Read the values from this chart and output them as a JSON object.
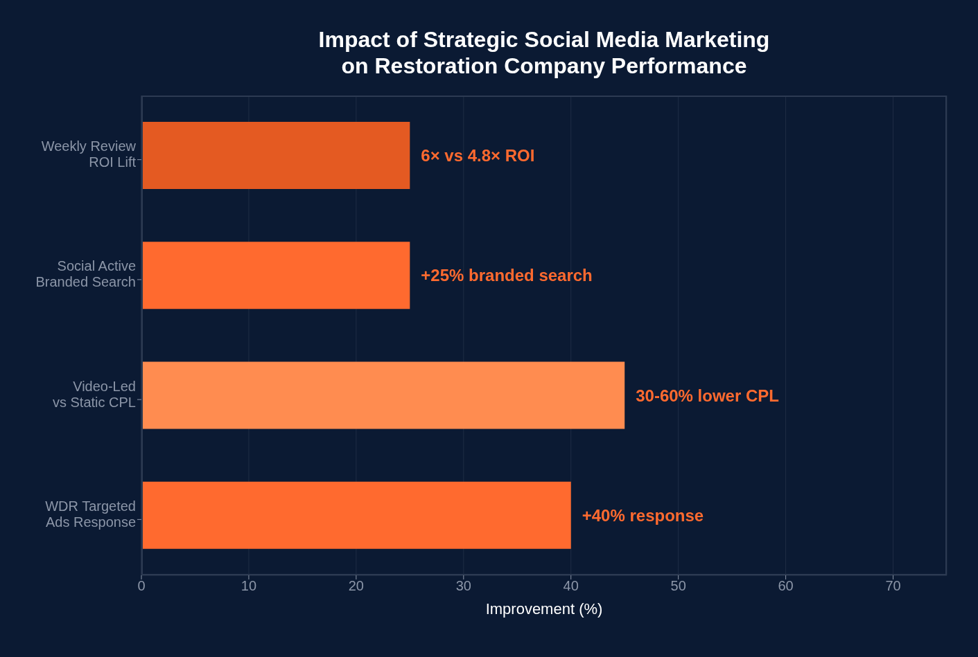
{
  "chart_data": {
    "type": "bar",
    "orientation": "horizontal",
    "title": "Impact of Strategic Social Media Marketing\non Restoration Company Performance",
    "xlabel": "Improvement (%)",
    "categories": [
      "Weekly Review\nROI Lift",
      "Social Active\nBranded Search",
      "Video-Led\nvs Static CPL",
      "WDR Targeted\nAds Response"
    ],
    "values": [
      25,
      25,
      45,
      40
    ],
    "colors": [
      "#e45a22",
      "#ff6a2f",
      "#ff8c50",
      "#ff6a2f"
    ],
    "annotations": [
      {
        "text": "6× vs 4.8× ROI",
        "x": 25,
        "y": "Weekly Review\nROI Lift"
      },
      {
        "text": "+25% branded search",
        "x": 25,
        "y": "Social Active\nBranded Search"
      },
      {
        "text": "30-60% lower CPL",
        "x": 45,
        "y": "Video-Led\nvs Static CPL"
      },
      {
        "text": "+40% response",
        "x": 40,
        "y": "WDR Targeted\nAds Response"
      }
    ],
    "xlim": [
      0,
      75
    ],
    "xticks": [
      0,
      10,
      20,
      30,
      40,
      50,
      60,
      70
    ],
    "grid": "x",
    "legend": false
  }
}
